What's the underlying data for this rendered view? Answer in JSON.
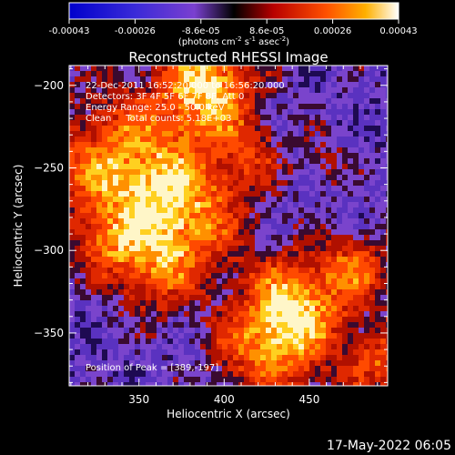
{
  "colorbar": {
    "ticks": [
      "-0.00043",
      "-0.00026",
      "-8.6e-05",
      "8.6e-05",
      "0.00026",
      "0.00043"
    ],
    "range": [
      -0.00043,
      0.00043
    ],
    "unit_main": "(photons cm",
    "unit_sup1": "-2",
    "unit_mid": " s",
    "unit_sup2": "-1",
    "unit_end": " asec",
    "unit_sup3": "-2",
    "unit_close": ")"
  },
  "chart_data": {
    "type": "heatmap",
    "title": "Reconstructed RHESSI Image",
    "xlabel": "Heliocentric X (arcsec)",
    "ylabel": "Heliocentric Y (arcsec)",
    "xlim": [
      309,
      496
    ],
    "ylim": [
      -382,
      -188
    ],
    "xticks": [
      350,
      400,
      450
    ],
    "yticks": [
      -200,
      -250,
      -300,
      -350
    ],
    "annotations": [
      "22-Dec-2011 16:52:20.000 to 16:56:20.000",
      "Detectors: 3F 4F 5F 6F 7F 8F, Att 0",
      "Energy Range: 25.0 - 50.0 keV",
      "Clean     Total counts: 5.18E+03"
    ],
    "peak_label": "Position of Peak = [389,-197]",
    "peak_position": [
      389,
      -197
    ],
    "colormap": [
      "#0000c8",
      "#5a2ec8",
      "#7b3fd0",
      "#1a0010",
      "#ff2a00",
      "#ff9a00",
      "#ffffff"
    ]
  },
  "footer": {
    "timestamp": "17-May-2022 06:05"
  }
}
